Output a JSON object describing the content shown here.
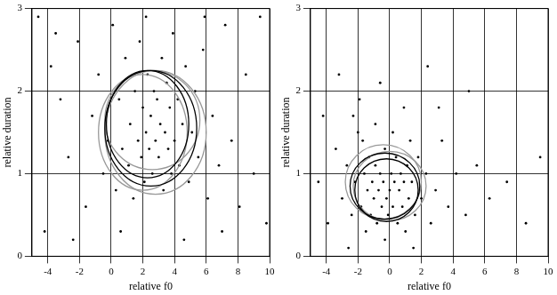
{
  "chart_data": [
    {
      "type": "scatter",
      "x_label": "relative f0",
      "y_label": "relative duration",
      "xlim": [
        -5,
        10
      ],
      "xticks": [
        -4,
        -2,
        0,
        2,
        4,
        6,
        8,
        10
      ],
      "ylim": [
        0,
        3
      ],
      "yticks": [
        0,
        1,
        2,
        3
      ],
      "grid": true,
      "color": "#000000",
      "marker": "circle",
      "x": [
        -4.6,
        -3.8,
        -3.2,
        -2.7,
        -2.1,
        -1.6,
        -1.2,
        -0.8,
        -0.5,
        -0.2,
        0.1,
        0.3,
        0.5,
        0.7,
        0.9,
        1.1,
        1.2,
        1.4,
        1.5,
        1.7,
        1.8,
        1.9,
        2.0,
        2.1,
        2.2,
        2.3,
        2.4,
        2.5,
        2.6,
        2.7,
        2.8,
        2.9,
        3.0,
        3.1,
        3.2,
        3.3,
        3.4,
        3.5,
        3.6,
        3.7,
        3.8,
        3.9,
        4.0,
        4.2,
        4.3,
        4.5,
        4.7,
        4.9,
        5.1,
        5.3,
        5.5,
        5.8,
        6.1,
        6.4,
        6.8,
        7.2,
        7.6,
        8.1,
        8.5,
        9.0,
        9.4,
        9.8,
        -4.2,
        -2.4,
        0.6,
        4.6,
        7.0,
        -3.5,
        5.9,
        2.2
      ],
      "values": [
        2.9,
        2.3,
        1.9,
        1.2,
        2.6,
        0.6,
        1.7,
        2.2,
        1.0,
        1.4,
        2.8,
        0.8,
        1.9,
        1.3,
        2.4,
        1.1,
        1.6,
        0.7,
        2.0,
        1.4,
        2.6,
        1.2,
        1.8,
        0.9,
        1.5,
        2.2,
        1.3,
        1.7,
        1.0,
        2.0,
        1.4,
        1.9,
        1.2,
        1.6,
        2.4,
        0.8,
        1.5,
        2.1,
        1.3,
        1.8,
        1.0,
        2.7,
        1.4,
        1.9,
        1.1,
        1.6,
        2.3,
        0.9,
        1.5,
        2.0,
        1.2,
        2.5,
        0.7,
        1.7,
        1.1,
        2.8,
        1.4,
        0.6,
        2.2,
        1.0,
        2.9,
        0.4,
        0.3,
        0.2,
        0.3,
        0.2,
        0.3,
        2.7,
        2.9,
        2.9
      ],
      "ellipses": [
        {
          "cx": 2.8,
          "cy": 1.5,
          "rx": 3.2,
          "ry": 0.75,
          "color": "#999999"
        },
        {
          "cx": 2.6,
          "cy": 1.65,
          "rx": 3.0,
          "ry": 0.6,
          "color": "#999999"
        },
        {
          "cx": 2.0,
          "cy": 1.5,
          "rx": 2.8,
          "ry": 0.7,
          "color": "#999999"
        },
        {
          "cx": 2.5,
          "cy": 1.55,
          "rx": 2.9,
          "ry": 0.7,
          "color": "#000000"
        },
        {
          "cx": 2.3,
          "cy": 1.6,
          "rx": 2.6,
          "ry": 0.65,
          "color": "#000000"
        }
      ]
    },
    {
      "type": "scatter",
      "x_label": "relative f0",
      "y_label": "relative duration",
      "xlim": [
        -5,
        10
      ],
      "xticks": [
        -4,
        -2,
        0,
        2,
        4,
        6,
        8,
        10
      ],
      "ylim": [
        0,
        3
      ],
      "yticks": [
        0,
        1,
        2,
        3
      ],
      "grid": true,
      "color": "#000000",
      "marker": "circle",
      "x": [
        -4.5,
        -3.9,
        -3.4,
        -3.0,
        -2.7,
        -2.4,
        -2.2,
        -2.0,
        -1.8,
        -1.6,
        -1.5,
        -1.4,
        -1.3,
        -1.2,
        -1.1,
        -1.0,
        -0.9,
        -0.8,
        -0.7,
        -0.6,
        -0.5,
        -0.4,
        -0.3,
        -0.2,
        -0.1,
        0.0,
        0.1,
        0.2,
        0.3,
        0.4,
        0.5,
        0.6,
        0.7,
        0.8,
        0.9,
        1.0,
        1.1,
        1.2,
        1.4,
        1.6,
        1.8,
        2.0,
        2.3,
        2.6,
        2.9,
        3.3,
        3.7,
        4.2,
        4.8,
        5.5,
        6.3,
        7.4,
        8.6,
        9.5,
        -1.9,
        -0.6,
        0.9,
        2.4,
        -3.2,
        1.5,
        -2.6,
        -0.3,
        -1.7,
        -0.9,
        0.2,
        1.3,
        -2.3,
        3.1,
        -4.2,
        5.0
      ],
      "values": [
        0.9,
        0.4,
        1.3,
        0.7,
        1.1,
        0.5,
        0.9,
        1.5,
        0.6,
        1.0,
        0.3,
        0.8,
        1.2,
        0.5,
        0.9,
        0.7,
        1.1,
        0.4,
        0.8,
        1.0,
        0.6,
        0.9,
        1.3,
        0.7,
        0.5,
        0.8,
        1.0,
        0.6,
        0.9,
        1.2,
        0.4,
        0.8,
        1.0,
        0.6,
        0.9,
        0.3,
        1.1,
        0.7,
        0.9,
        0.5,
        1.2,
        0.7,
        1.0,
        0.4,
        0.8,
        1.4,
        0.6,
        1.0,
        0.5,
        1.1,
        0.7,
        0.9,
        0.4,
        1.2,
        1.9,
        2.1,
        1.8,
        2.3,
        2.2,
        0.1,
        0.1,
        0.2,
        1.4,
        1.6,
        1.5,
        1.4,
        1.7,
        1.8,
        1.7,
        2.0
      ],
      "ellipses": [
        {
          "cx": -0.4,
          "cy": 0.9,
          "rx": 2.4,
          "ry": 0.45,
          "color": "#999999"
        },
        {
          "cx": 0.0,
          "cy": 0.85,
          "rx": 2.3,
          "ry": 0.42,
          "color": "#999999"
        },
        {
          "cx": -0.3,
          "cy": 0.85,
          "rx": 2.2,
          "ry": 0.4,
          "color": "#000000"
        },
        {
          "cx": -0.2,
          "cy": 0.8,
          "rx": 2.0,
          "ry": 0.38,
          "color": "#000000"
        }
      ]
    }
  ]
}
